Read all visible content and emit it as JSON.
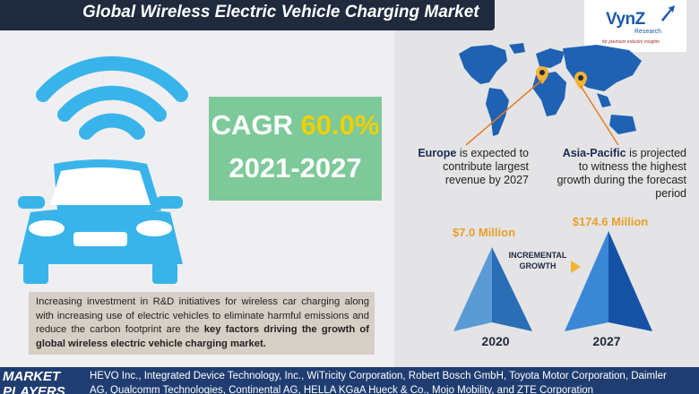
{
  "header": {
    "title": "Global Wireless Electric Vehicle Charging Market"
  },
  "logo": {
    "brand": "VynZ",
    "sub": "Research",
    "tagline": "for premium industry insights"
  },
  "cagr": {
    "label": "CAGR",
    "value": "60.0%",
    "period": "2021-2027"
  },
  "description": {
    "text_plain": "Increasing investment in R&D initiatives for wireless car charging along with increasing use of electric vehicles to eliminate harmful emissions and reduce the carbon footprint are the ",
    "text_bold": "key factors driving the growth of global wireless electric vehicle charging market."
  },
  "regions": {
    "europe": {
      "name": "Europe",
      "text": "is expected to contribute largest revenue by 2027"
    },
    "asia": {
      "name": "Asia-Pacific",
      "text": "is projected to witness the highest growth during the forecast period"
    }
  },
  "growth": {
    "value_2020": "$7.0 Million",
    "value_2027": "$174.6 Million",
    "incremental_line1": "INCREMENTAL",
    "incremental_line2": "GROWTH",
    "year_2020": "2020",
    "year_2027": "2027",
    "values_musd": [
      7.0,
      174.6
    ]
  },
  "footer": {
    "label_line1": "MARKET",
    "label_line2": "PLAYERS",
    "players_line1": "HEVO Inc., Integrated Device Technology, Inc., WiTricity Corporation, Robert Bosch GmbH, Toyota Motor Corporation, Daimler",
    "players_line2": "AG, Qualcomm Technologies, Continental AG, HELLA KGaA Hueck & Co., Mojo Mobility, and ZTE Corporation"
  },
  "colors": {
    "title_bg": "#1f2a3d",
    "cagr_bg": "#7dc99a",
    "cagr_accent": "#f1d000",
    "car_blue": "#39b4ea",
    "value_orange": "#e8a02a",
    "footer_bg": "#1f3d70",
    "map_blue": "#1f62b4"
  },
  "icons": [
    "wifi-signal-icon",
    "electric-car-icon",
    "world-map-icon",
    "location-pin-icon",
    "growth-arrow-icon"
  ]
}
